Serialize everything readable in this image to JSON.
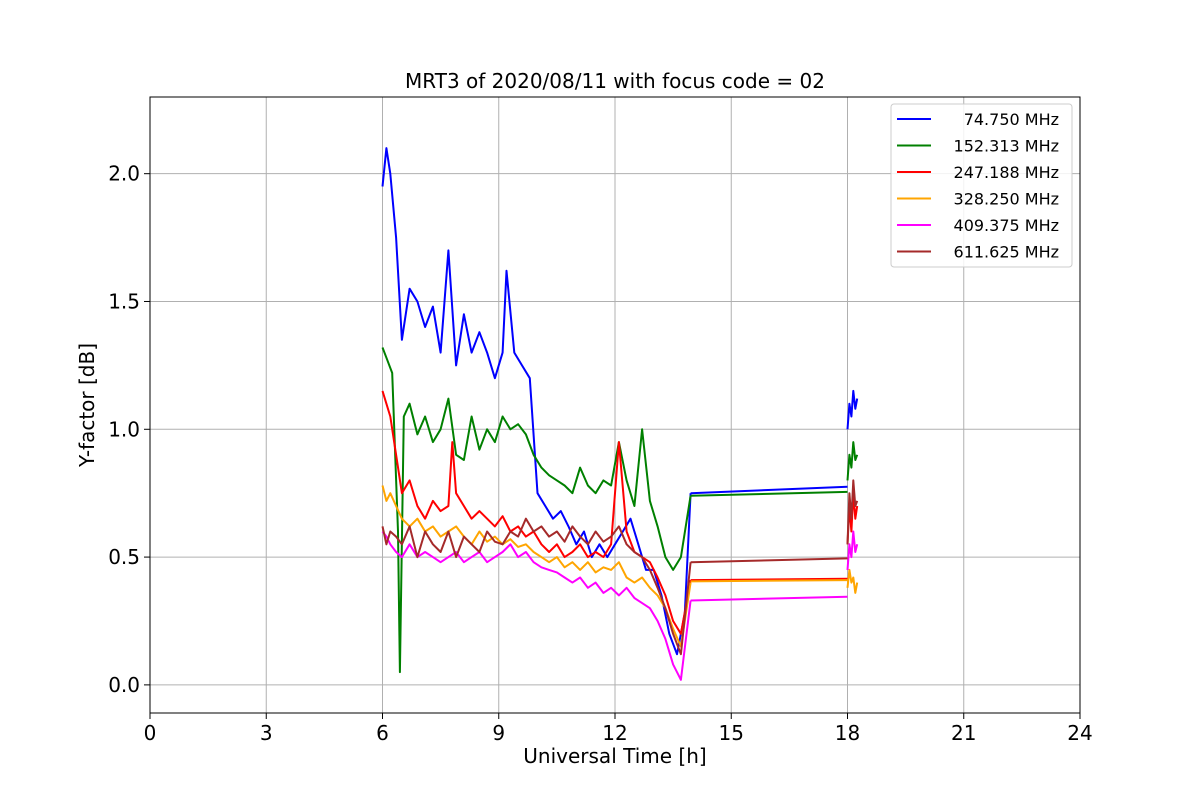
{
  "chart_data": {
    "type": "line",
    "title": "MRT3 of 2020/08/11 with focus code = 02",
    "xlabel": "Universal Time [h]",
    "ylabel": "Y-factor [dB]",
    "xlim": [
      0,
      24
    ],
    "ylim": [
      -0.11,
      2.3
    ],
    "x_ticks": [
      0,
      3,
      6,
      9,
      12,
      15,
      18,
      21,
      24
    ],
    "x_tick_labels": [
      "0",
      "3",
      "6",
      "9",
      "12",
      "15",
      "18",
      "21",
      "24"
    ],
    "y_ticks": [
      0.0,
      0.5,
      1.0,
      1.5,
      2.0
    ],
    "y_tick_labels": [
      "0.0",
      "0.5",
      "1.0",
      "1.5",
      "2.0"
    ],
    "grid": true,
    "legend_position": "top-right",
    "series": [
      {
        "name": "74.750 MHz",
        "color": "#0000ff",
        "segments": [
          {
            "x": [
              6.0,
              6.1,
              6.2,
              6.35,
              6.5,
              6.7,
              6.9,
              7.1,
              7.3,
              7.5,
              7.7,
              7.9,
              8.1,
              8.3,
              8.5,
              8.7,
              8.9,
              9.1,
              9.2,
              9.4,
              9.6,
              9.8,
              10.0,
              10.2,
              10.4,
              10.6,
              10.8,
              11.0,
              11.2,
              11.4,
              11.6,
              11.8,
              12.0,
              12.2,
              12.4,
              12.6,
              12.8,
              13.0,
              13.2,
              13.4,
              13.6,
              13.8,
              13.95
            ],
            "y": [
              1.95,
              2.1,
              2.0,
              1.75,
              1.35,
              1.55,
              1.5,
              1.4,
              1.48,
              1.3,
              1.7,
              1.25,
              1.45,
              1.3,
              1.38,
              1.3,
              1.2,
              1.3,
              1.62,
              1.3,
              1.25,
              1.2,
              0.75,
              0.7,
              0.65,
              0.68,
              0.62,
              0.55,
              0.6,
              0.5,
              0.55,
              0.5,
              0.55,
              0.6,
              0.65,
              0.55,
              0.45,
              0.45,
              0.35,
              0.2,
              0.12,
              0.28,
              0.75
            ]
          },
          {
            "x": [
              13.95,
              18.0
            ],
            "y": [
              0.75,
              0.775
            ]
          },
          {
            "x": [
              18.0,
              18.05,
              18.1,
              18.15,
              18.2,
              18.25
            ],
            "y": [
              1.0,
              1.1,
              1.05,
              1.15,
              1.08,
              1.12
            ]
          }
        ]
      },
      {
        "name": "152.313 MHz",
        "color": "#008000",
        "segments": [
          {
            "x": [
              6.0,
              6.1,
              6.25,
              6.4,
              6.45,
              6.55,
              6.7,
              6.9,
              7.1,
              7.3,
              7.5,
              7.7,
              7.9,
              8.1,
              8.3,
              8.5,
              8.7,
              8.9,
              9.1,
              9.3,
              9.5,
              9.7,
              9.9,
              10.1,
              10.3,
              10.5,
              10.7,
              10.9,
              11.1,
              11.3,
              11.5,
              11.7,
              11.9,
              12.1,
              12.3,
              12.5,
              12.7,
              12.9,
              13.1,
              13.3,
              13.5,
              13.7,
              13.95
            ],
            "y": [
              1.32,
              1.28,
              1.22,
              0.6,
              0.05,
              1.05,
              1.1,
              0.98,
              1.05,
              0.95,
              1.0,
              1.12,
              0.9,
              0.88,
              1.05,
              0.92,
              1.0,
              0.95,
              1.05,
              1.0,
              1.02,
              0.98,
              0.9,
              0.85,
              0.82,
              0.8,
              0.78,
              0.75,
              0.85,
              0.78,
              0.75,
              0.8,
              0.78,
              0.95,
              0.8,
              0.7,
              1.0,
              0.72,
              0.62,
              0.5,
              0.45,
              0.5,
              0.74
            ]
          },
          {
            "x": [
              13.95,
              18.0
            ],
            "y": [
              0.74,
              0.755
            ]
          },
          {
            "x": [
              18.0,
              18.05,
              18.1,
              18.15,
              18.2,
              18.25
            ],
            "y": [
              0.8,
              0.9,
              0.85,
              0.95,
              0.88,
              0.9
            ]
          }
        ]
      },
      {
        "name": "247.188 MHz",
        "color": "#ff0000",
        "segments": [
          {
            "x": [
              6.0,
              6.1,
              6.2,
              6.35,
              6.5,
              6.7,
              6.9,
              7.1,
              7.3,
              7.5,
              7.7,
              7.8,
              7.9,
              8.1,
              8.3,
              8.5,
              8.7,
              8.9,
              9.1,
              9.3,
              9.5,
              9.7,
              9.9,
              10.1,
              10.3,
              10.5,
              10.7,
              10.9,
              11.1,
              11.3,
              11.5,
              11.7,
              11.9,
              12.1,
              12.3,
              12.5,
              12.7,
              12.9,
              13.1,
              13.3,
              13.5,
              13.7,
              13.95
            ],
            "y": [
              1.15,
              1.1,
              1.05,
              0.9,
              0.75,
              0.8,
              0.7,
              0.65,
              0.72,
              0.68,
              0.7,
              0.95,
              0.75,
              0.7,
              0.65,
              0.68,
              0.65,
              0.62,
              0.66,
              0.6,
              0.62,
              0.58,
              0.6,
              0.55,
              0.52,
              0.55,
              0.5,
              0.52,
              0.55,
              0.5,
              0.52,
              0.5,
              0.55,
              0.95,
              0.6,
              0.52,
              0.5,
              0.48,
              0.42,
              0.35,
              0.25,
              0.2,
              0.41
            ]
          },
          {
            "x": [
              13.95,
              18.0
            ],
            "y": [
              0.41,
              0.415
            ]
          },
          {
            "x": [
              18.0,
              18.05,
              18.1,
              18.15,
              18.2,
              18.25
            ],
            "y": [
              0.55,
              0.7,
              0.6,
              0.75,
              0.65,
              0.7
            ]
          }
        ]
      },
      {
        "name": "328.250 MHz",
        "color": "#ffa500",
        "segments": [
          {
            "x": [
              6.0,
              6.1,
              6.2,
              6.35,
              6.5,
              6.7,
              6.9,
              7.1,
              7.3,
              7.5,
              7.7,
              7.9,
              8.1,
              8.3,
              8.5,
              8.7,
              8.9,
              9.1,
              9.3,
              9.5,
              9.7,
              9.9,
              10.1,
              10.3,
              10.5,
              10.7,
              10.9,
              11.1,
              11.3,
              11.5,
              11.7,
              11.9,
              12.1,
              12.3,
              12.5,
              12.7,
              12.9,
              13.1,
              13.3,
              13.5,
              13.7,
              13.95
            ],
            "y": [
              0.78,
              0.72,
              0.75,
              0.7,
              0.65,
              0.62,
              0.65,
              0.6,
              0.62,
              0.58,
              0.6,
              0.62,
              0.58,
              0.55,
              0.6,
              0.56,
              0.58,
              0.55,
              0.57,
              0.54,
              0.55,
              0.52,
              0.5,
              0.48,
              0.5,
              0.46,
              0.48,
              0.45,
              0.48,
              0.44,
              0.46,
              0.45,
              0.48,
              0.42,
              0.4,
              0.42,
              0.38,
              0.35,
              0.3,
              0.22,
              0.15,
              0.4
            ]
          },
          {
            "x": [
              13.95,
              18.0
            ],
            "y": [
              0.405,
              0.41
            ]
          },
          {
            "x": [
              18.0,
              18.05,
              18.1,
              18.15,
              18.2,
              18.25
            ],
            "y": [
              0.38,
              0.45,
              0.4,
              0.42,
              0.36,
              0.4
            ]
          }
        ]
      },
      {
        "name": "409.375 MHz",
        "color": "#ff00ff",
        "segments": [
          {
            "x": [
              6.0,
              6.1,
              6.2,
              6.35,
              6.5,
              6.7,
              6.9,
              7.1,
              7.3,
              7.5,
              7.7,
              7.9,
              8.1,
              8.3,
              8.5,
              8.7,
              8.9,
              9.1,
              9.3,
              9.5,
              9.7,
              9.9,
              10.1,
              10.3,
              10.5,
              10.7,
              10.9,
              11.1,
              11.3,
              11.5,
              11.7,
              11.9,
              12.1,
              12.3,
              12.5,
              12.7,
              12.9,
              13.1,
              13.3,
              13.5,
              13.7,
              13.95
            ],
            "y": [
              0.6,
              0.58,
              0.55,
              0.52,
              0.5,
              0.55,
              0.5,
              0.52,
              0.5,
              0.48,
              0.5,
              0.52,
              0.48,
              0.5,
              0.52,
              0.48,
              0.5,
              0.52,
              0.55,
              0.5,
              0.52,
              0.48,
              0.46,
              0.45,
              0.44,
              0.42,
              0.4,
              0.42,
              0.38,
              0.4,
              0.36,
              0.38,
              0.35,
              0.38,
              0.34,
              0.32,
              0.3,
              0.25,
              0.18,
              0.08,
              0.02,
              0.33
            ]
          },
          {
            "x": [
              13.95,
              18.0
            ],
            "y": [
              0.33,
              0.345
            ]
          },
          {
            "x": [
              18.0,
              18.05,
              18.1,
              18.15,
              18.2,
              18.25
            ],
            "y": [
              0.45,
              0.55,
              0.5,
              0.6,
              0.52,
              0.55
            ]
          }
        ]
      },
      {
        "name": "611.625 MHz",
        "color": "#a52a2a",
        "segments": [
          {
            "x": [
              6.0,
              6.1,
              6.2,
              6.35,
              6.5,
              6.7,
              6.9,
              7.1,
              7.3,
              7.5,
              7.7,
              7.9,
              8.1,
              8.3,
              8.5,
              8.7,
              8.9,
              9.1,
              9.3,
              9.5,
              9.7,
              9.9,
              10.1,
              10.3,
              10.5,
              10.7,
              10.9,
              11.1,
              11.3,
              11.5,
              11.7,
              11.9,
              12.1,
              12.3,
              12.5,
              12.7,
              12.9,
              13.1,
              13.3,
              13.5,
              13.7,
              13.95
            ],
            "y": [
              0.62,
              0.55,
              0.6,
              0.58,
              0.55,
              0.62,
              0.5,
              0.6,
              0.55,
              0.52,
              0.6,
              0.5,
              0.58,
              0.55,
              0.52,
              0.6,
              0.56,
              0.55,
              0.6,
              0.58,
              0.65,
              0.6,
              0.62,
              0.58,
              0.6,
              0.56,
              0.62,
              0.58,
              0.55,
              0.6,
              0.56,
              0.58,
              0.62,
              0.55,
              0.52,
              0.5,
              0.45,
              0.38,
              0.3,
              0.2,
              0.12,
              0.48
            ]
          },
          {
            "x": [
              13.95,
              18.0
            ],
            "y": [
              0.48,
              0.495
            ]
          },
          {
            "x": [
              18.0,
              18.05,
              18.1,
              18.15,
              18.2,
              18.25
            ],
            "y": [
              0.55,
              0.75,
              0.65,
              0.8,
              0.7,
              0.72
            ]
          }
        ]
      }
    ]
  }
}
